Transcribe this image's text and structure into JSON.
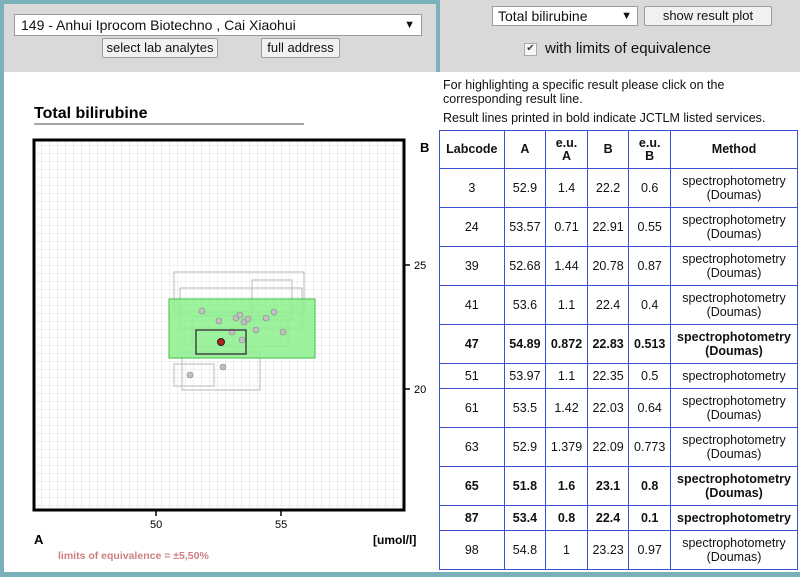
{
  "lab_selector": {
    "value": "149 - Anhui Iprocom Biotechno , Cai Xiaohui"
  },
  "buttons": {
    "select_analytes": "select lab analytes",
    "full_address": "full address",
    "show_plot": "show result plot"
  },
  "analyte_selector": {
    "value": "Total bilirubine"
  },
  "equivalence_toggle": {
    "label": "with limits of equivalence",
    "checked": true
  },
  "info": {
    "line1a": "For highlighting a specific result please click on the",
    "line1b": "corresponding result line.",
    "line2": "Result lines printed in bold indicate JCTLM listed services."
  },
  "table": {
    "headers": [
      "Labcode",
      "A",
      "e.u.\nA",
      "B",
      "e.u.\nB",
      "Method"
    ],
    "rows": [
      {
        "labcode": "3",
        "a": "52.9",
        "eua": "1.4",
        "b": "22.2",
        "eub": "0.6",
        "method": "spectrophotometry (Doumas)",
        "bold": false
      },
      {
        "labcode": "24",
        "a": "53.57",
        "eua": "0.71",
        "b": "22.91",
        "eub": "0.55",
        "method": "spectrophotometry (Doumas)",
        "bold": false
      },
      {
        "labcode": "39",
        "a": "52.68",
        "eua": "1.44",
        "b": "20.78",
        "eub": "0.87",
        "method": "spectrophotometry (Doumas)",
        "bold": false
      },
      {
        "labcode": "41",
        "a": "53.6",
        "eua": "1.1",
        "b": "22.4",
        "eub": "0.4",
        "method": "spectrophotometry (Doumas)",
        "bold": false
      },
      {
        "labcode": "47",
        "a": "54.89",
        "eua": "0.872",
        "b": "22.83",
        "eub": "0.513",
        "method": "spectrophotometry (Doumas)",
        "bold": true
      },
      {
        "labcode": "51",
        "a": "53.97",
        "eua": "1.1",
        "b": "22.35",
        "eub": "0.5",
        "method": "spectrophotometry",
        "bold": false
      },
      {
        "labcode": "61",
        "a": "53.5",
        "eua": "1.42",
        "b": "22.03",
        "eub": "0.64",
        "method": "spectrophotometry (Doumas)",
        "bold": false
      },
      {
        "labcode": "63",
        "a": "52.9",
        "eua": "1.379",
        "b": "22.09",
        "eub": "0.773",
        "method": "spectrophotometry (Doumas)",
        "bold": false
      },
      {
        "labcode": "65",
        "a": "51.8",
        "eua": "1.6",
        "b": "23.1",
        "eub": "0.8",
        "method": "spectrophotometry (Doumas)",
        "bold": true
      },
      {
        "labcode": "87",
        "a": "53.4",
        "eua": "0.8",
        "b": "22.4",
        "eub": "0.1",
        "method": "spectrophotometry",
        "bold": true
      },
      {
        "labcode": "98",
        "a": "54.8",
        "eua": "1",
        "b": "23.23",
        "eub": "0.97",
        "method": "spectrophotometry (Doumas)",
        "bold": false
      }
    ]
  },
  "chart_data": {
    "type": "scatter",
    "title": "Total bilirubine",
    "xlabel": "A",
    "ylabel": "B",
    "unit_label": "[umol/l]",
    "footnote": "limits of equivalence = ±5,50%",
    "x_ticks": [
      "50",
      "55"
    ],
    "y_ticks": [
      "20",
      "25"
    ],
    "colors": {
      "zone": "#8cf08c",
      "zone_border": "#5ac85a",
      "own_result": "#b22222",
      "others": "#a8a8a8"
    }
  }
}
